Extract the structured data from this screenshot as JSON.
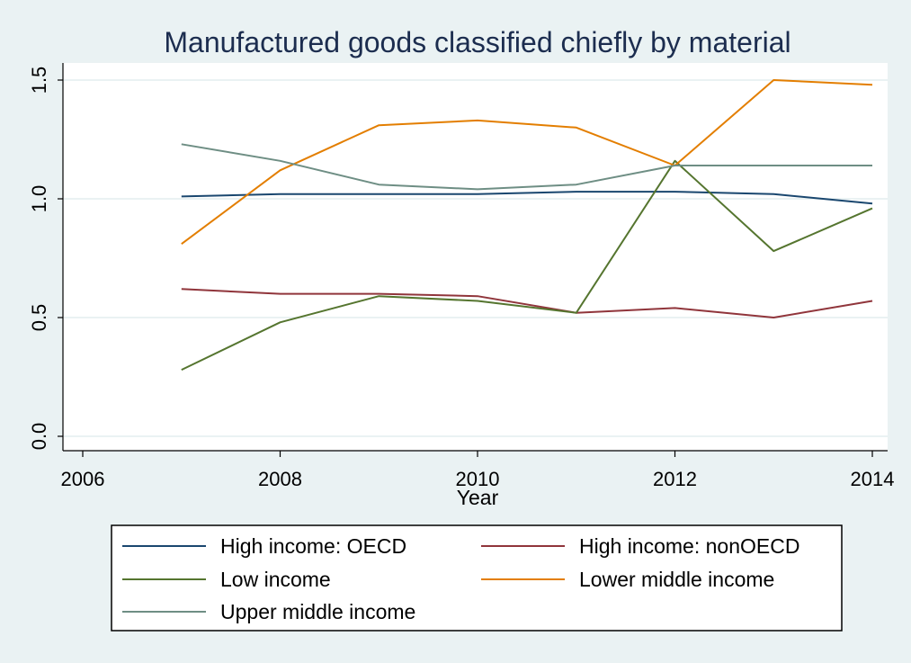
{
  "chart_data": {
    "type": "line",
    "title": "Manufactured goods classified chiefly by material",
    "xlabel": "Year",
    "ylabel": "",
    "xlim": [
      2006,
      2014
    ],
    "ylim": [
      0,
      1.5
    ],
    "xticks": [
      2006,
      2008,
      2010,
      2012,
      2014
    ],
    "yticks": [
      0,
      0.5,
      1,
      1.5
    ],
    "xtick_labels": [
      "2006",
      "2008",
      "2010",
      "2012",
      "2014"
    ],
    "ytick_labels": [
      "0.0",
      "0.5",
      "1.0",
      "1.5"
    ],
    "grid": "horizontal",
    "legend_position": "bottom",
    "x": [
      2007,
      2008,
      2009,
      2010,
      2011,
      2012,
      2013,
      2014
    ],
    "series": [
      {
        "name": "High income: OECD",
        "color": "#1a476f",
        "values": [
          1.01,
          1.02,
          1.02,
          1.02,
          1.03,
          1.03,
          1.02,
          0.98
        ]
      },
      {
        "name": "High income: nonOECD",
        "color": "#90353b",
        "values": [
          0.62,
          0.6,
          0.6,
          0.59,
          0.52,
          0.54,
          0.5,
          0.57
        ]
      },
      {
        "name": "Low income",
        "color": "#55752f",
        "values": [
          0.28,
          0.48,
          0.59,
          0.57,
          0.52,
          1.16,
          0.78,
          0.96
        ]
      },
      {
        "name": "Lower middle income",
        "color": "#e37e00",
        "values": [
          0.81,
          1.12,
          1.31,
          1.33,
          1.3,
          1.14,
          1.5,
          1.48
        ]
      },
      {
        "name": "Upper middle income",
        "color": "#6e8e84",
        "values": [
          1.23,
          1.16,
          1.06,
          1.04,
          1.06,
          1.14,
          1.14,
          1.14
        ]
      }
    ]
  }
}
